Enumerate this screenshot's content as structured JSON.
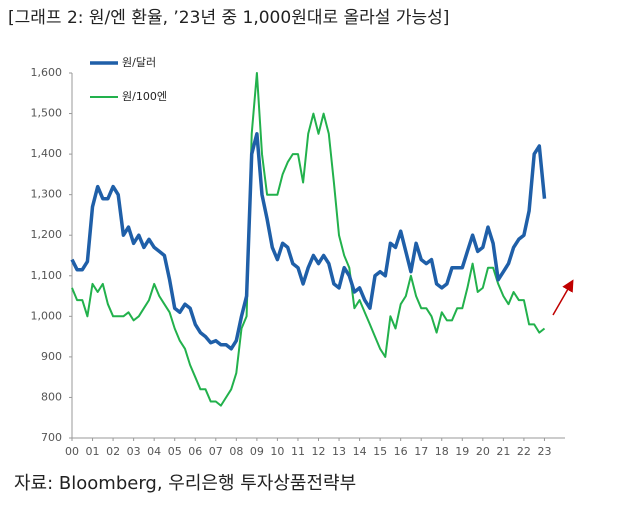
{
  "chart_data": {
    "type": "line",
    "title": "[그래프 2: 원/엔 환율, ’23년 중 1,000원대로 올라설 가능성]",
    "source": "자료: Bloomberg, 우리은행 투자상품전략부",
    "x": [
      0,
      0.25,
      0.5,
      0.75,
      1,
      1.25,
      1.5,
      1.75,
      2,
      2.25,
      2.5,
      2.75,
      3,
      3.25,
      3.5,
      3.75,
      4,
      4.25,
      4.5,
      4.75,
      5,
      5.25,
      5.5,
      5.75,
      6,
      6.25,
      6.5,
      6.75,
      7,
      7.25,
      7.5,
      7.75,
      8,
      8.25,
      8.5,
      8.75,
      9,
      9.25,
      9.5,
      9.75,
      10,
      10.25,
      10.5,
      10.75,
      11,
      11.25,
      11.5,
      11.75,
      12,
      12.25,
      12.5,
      12.75,
      13,
      13.25,
      13.5,
      13.75,
      14,
      14.25,
      14.5,
      14.75,
      15,
      15.25,
      15.5,
      15.75,
      16,
      16.25,
      16.5,
      16.75,
      17,
      17.25,
      17.5,
      17.75,
      18,
      18.25,
      18.5,
      18.75,
      19,
      19.25,
      19.5,
      19.75,
      20,
      20.25,
      20.5,
      20.75,
      21,
      21.25,
      21.5,
      21.75,
      22,
      22.25,
      22.5,
      22.75,
      23
    ],
    "series": [
      {
        "name": "원/달러",
        "color": "#1f5fa8",
        "width": 3.5,
        "values": [
          1140,
          1115,
          1115,
          1135,
          1270,
          1320,
          1290,
          1290,
          1320,
          1300,
          1200,
          1220,
          1180,
          1200,
          1170,
          1190,
          1170,
          1160,
          1150,
          1090,
          1020,
          1010,
          1030,
          1020,
          980,
          960,
          950,
          935,
          940,
          930,
          930,
          920,
          940,
          1000,
          1050,
          1400,
          1450,
          1300,
          1240,
          1170,
          1140,
          1180,
          1170,
          1130,
          1120,
          1080,
          1120,
          1150,
          1130,
          1150,
          1130,
          1080,
          1070,
          1120,
          1100,
          1060,
          1070,
          1040,
          1020,
          1100,
          1110,
          1100,
          1180,
          1170,
          1210,
          1160,
          1110,
          1180,
          1140,
          1130,
          1140,
          1080,
          1070,
          1080,
          1120,
          1120,
          1120,
          1160,
          1200,
          1160,
          1170,
          1220,
          1180,
          1090,
          1110,
          1130,
          1170,
          1190,
          1200,
          1260,
          1400,
          1420,
          1290
        ]
      },
      {
        "name": "원/100엔",
        "color": "#22b14c",
        "width": 2,
        "values": [
          1070,
          1040,
          1040,
          1000,
          1080,
          1060,
          1080,
          1030,
          1000,
          1000,
          1000,
          1010,
          990,
          1000,
          1020,
          1040,
          1080,
          1050,
          1030,
          1010,
          970,
          940,
          920,
          880,
          850,
          820,
          820,
          790,
          790,
          780,
          800,
          820,
          860,
          970,
          1000,
          1450,
          1600,
          1400,
          1300,
          1300,
          1300,
          1350,
          1380,
          1400,
          1400,
          1330,
          1450,
          1500,
          1450,
          1500,
          1450,
          1330,
          1200,
          1150,
          1120,
          1020,
          1040,
          1010,
          980,
          950,
          920,
          900,
          1000,
          970,
          1030,
          1050,
          1100,
          1050,
          1020,
          1020,
          1000,
          960,
          1010,
          990,
          990,
          1020,
          1020,
          1070,
          1130,
          1060,
          1070,
          1120,
          1120,
          1080,
          1050,
          1030,
          1060,
          1040,
          1040,
          980,
          980,
          960,
          970
        ]
      }
    ],
    "xlim": [
      0,
      24
    ],
    "xticks": [
      {
        "value": 0,
        "label": "00"
      },
      {
        "value": 1,
        "label": "01"
      },
      {
        "value": 2,
        "label": "02"
      },
      {
        "value": 3,
        "label": "03"
      },
      {
        "value": 4,
        "label": "04"
      },
      {
        "value": 5,
        "label": "05"
      },
      {
        "value": 6,
        "label": "06"
      },
      {
        "value": 7,
        "label": "07"
      },
      {
        "value": 8,
        "label": "08"
      },
      {
        "value": 9,
        "label": "09"
      },
      10,
      11,
      12,
      13,
      14,
      15,
      16,
      17,
      18,
      19,
      20,
      21,
      22,
      23
    ],
    "ylim": [
      700,
      1600
    ],
    "yticks": [
      {
        "value": 700,
        "label": "700"
      },
      {
        "value": 800,
        "label": "800"
      },
      {
        "value": 900,
        "label": "900"
      },
      {
        "value": 1000,
        "label": "1,000"
      },
      {
        "value": 1100,
        "label": "1,100"
      },
      {
        "value": 1200,
        "label": "1,200"
      },
      {
        "value": 1300,
        "label": "1,300"
      },
      {
        "value": 1400,
        "label": "1,400"
      },
      {
        "value": 1500,
        "label": "1,500"
      },
      {
        "value": 1600,
        "label": "1,600"
      }
    ],
    "legend": "upper left",
    "grid": false
  }
}
